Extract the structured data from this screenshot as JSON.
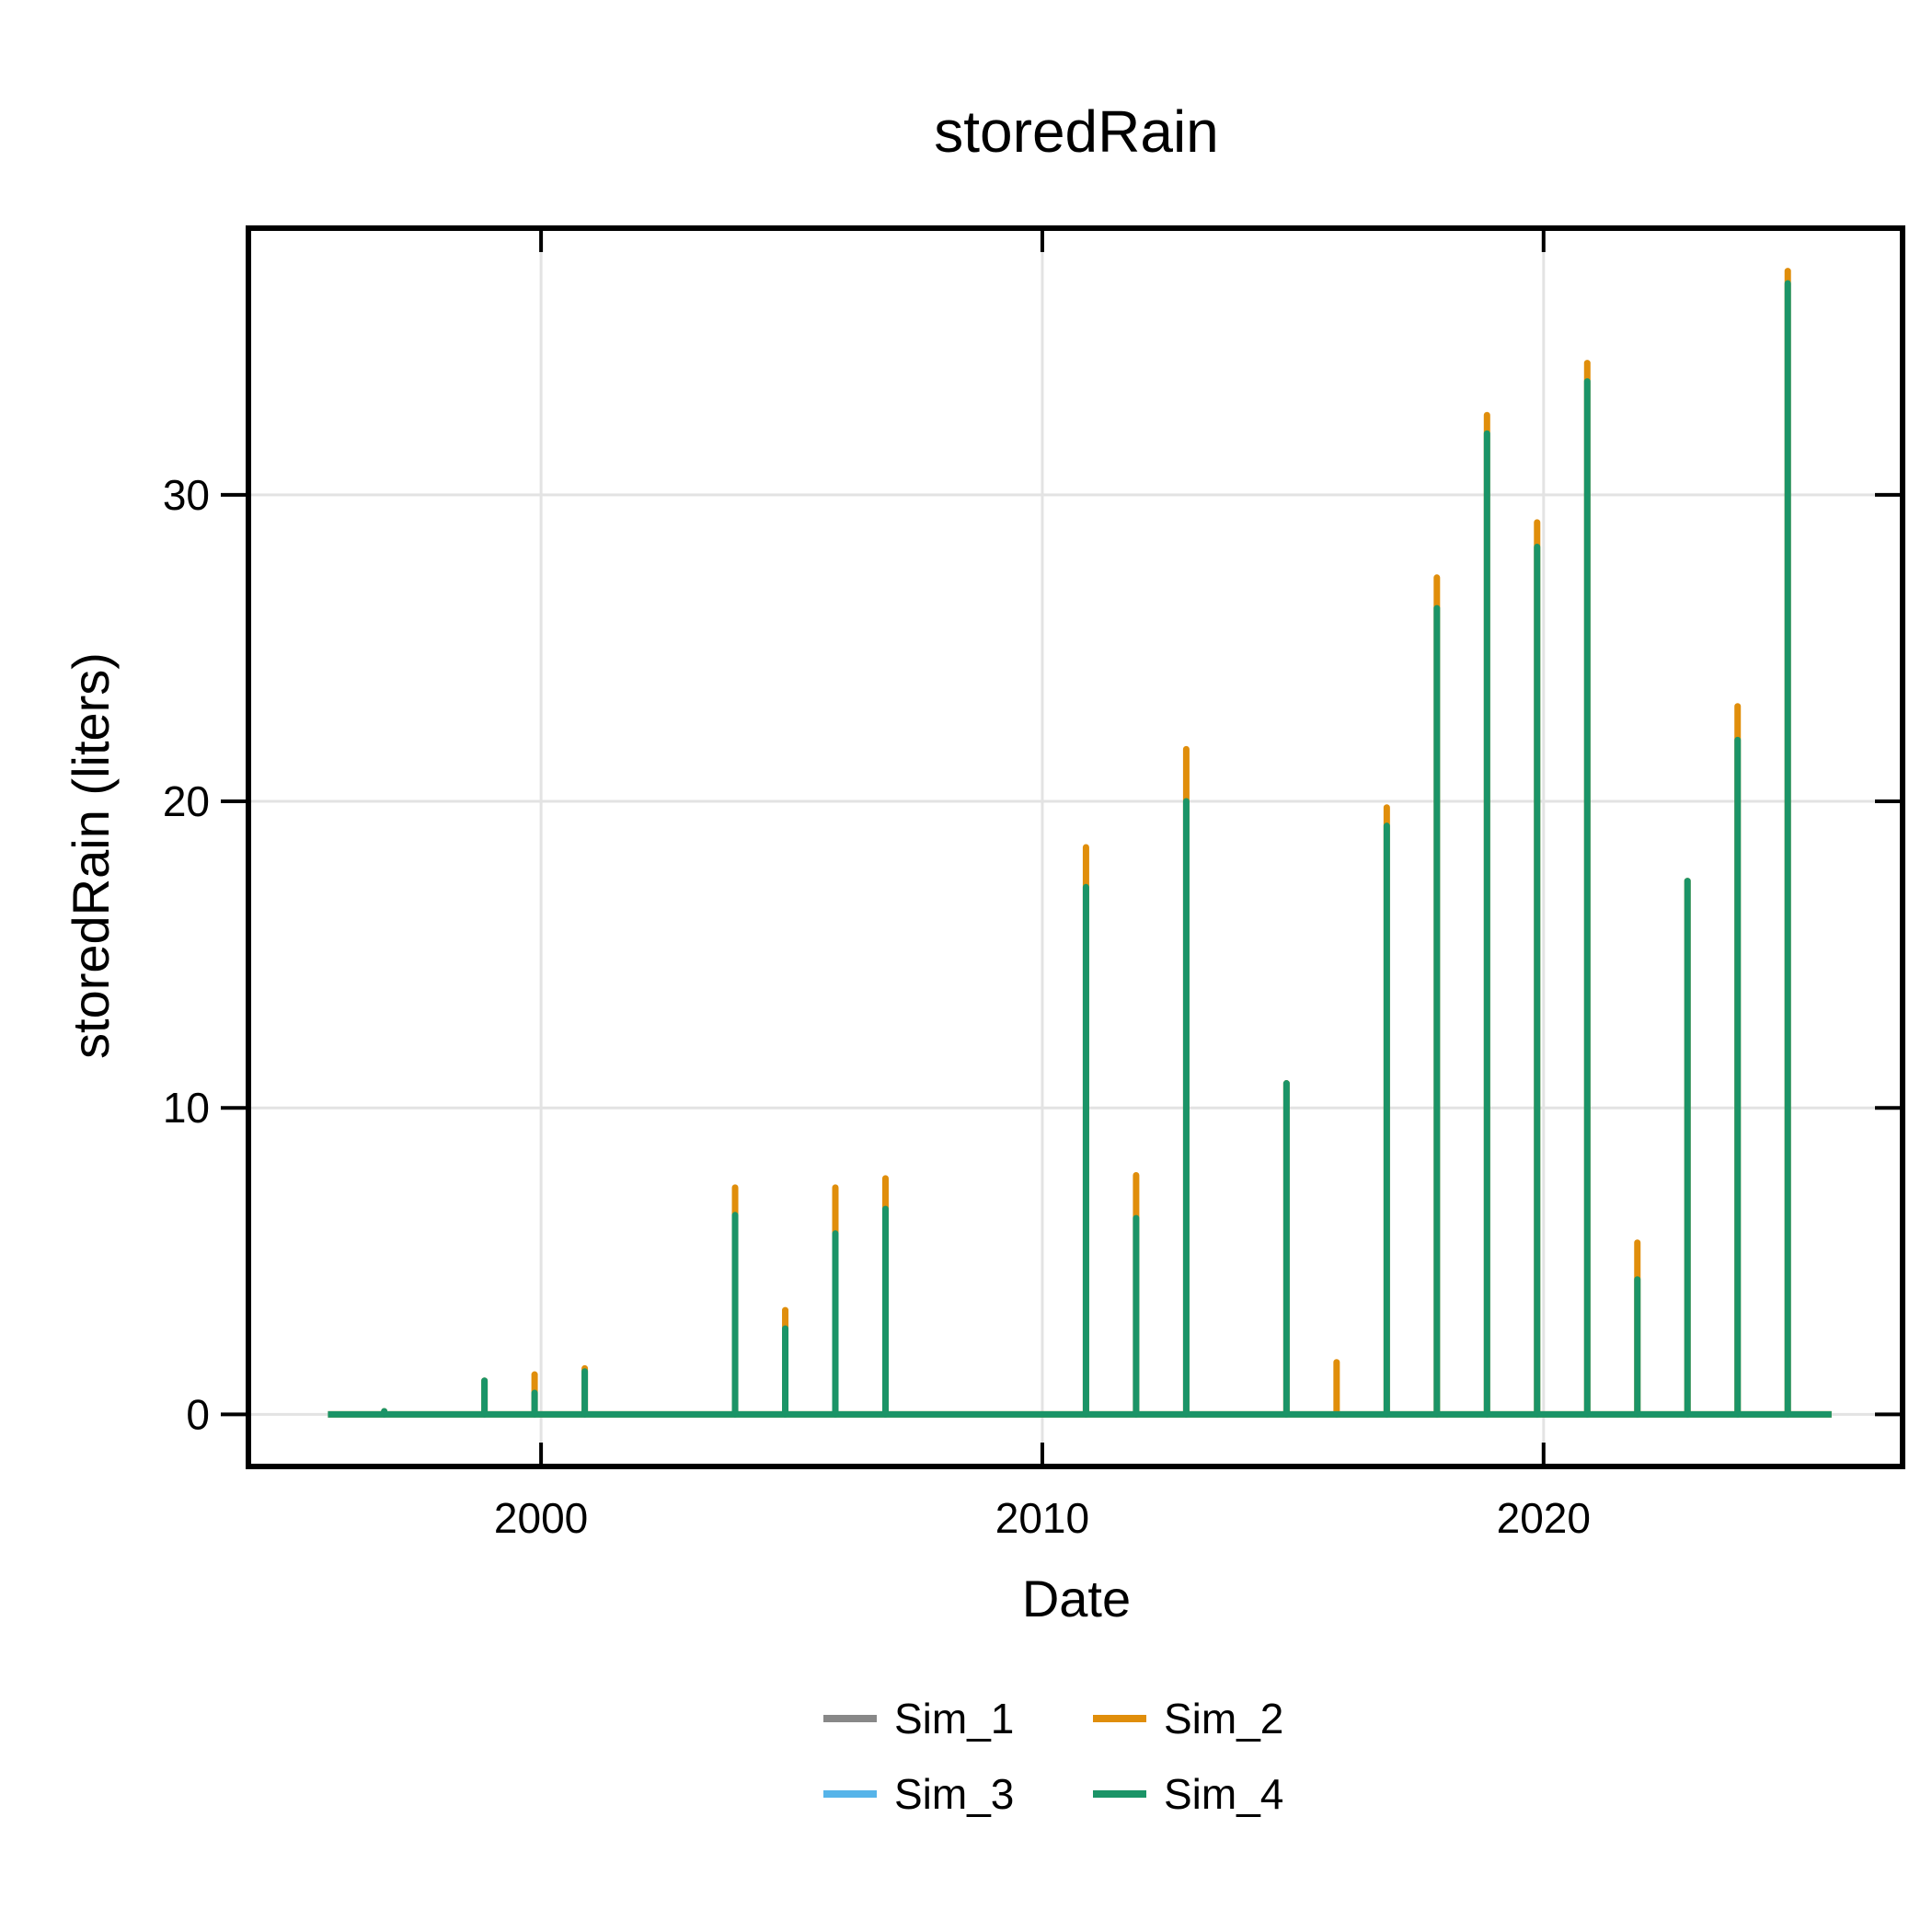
{
  "chart_data": {
    "type": "line",
    "title": "storedRain",
    "xlabel": "Date",
    "ylabel": "storedRain (liters)",
    "xlim": [
      "1994-03-01",
      "2027-03-01"
    ],
    "ylim": [
      -1.7,
      38.7
    ],
    "x_ticks": [
      "2000",
      "2010",
      "2020"
    ],
    "y_ticks": [
      0,
      10,
      20,
      30
    ],
    "grid": true,
    "legend_position": "bottom",
    "colors": {
      "Sim_1": "#888888",
      "Sim_2": "#E08E0B",
      "Sim_3": "#56B4E9",
      "Sim_4": "#1B9467"
    },
    "baseline_range": [
      "1995-10-01",
      "2025-09-30"
    ],
    "series": [
      {
        "name": "Sim_2",
        "peaks": [
          {
            "date": "1996-11-15",
            "value": 0.1
          },
          {
            "date": "1998-11-15",
            "value": 1.1
          },
          {
            "date": "1999-11-15",
            "value": 1.3
          },
          {
            "date": "2000-11-15",
            "value": 1.5
          },
          {
            "date": "2003-11-15",
            "value": 7.4
          },
          {
            "date": "2004-11-15",
            "value": 3.4
          },
          {
            "date": "2005-11-15",
            "value": 7.4
          },
          {
            "date": "2006-11-15",
            "value": 7.7
          },
          {
            "date": "2010-11-15",
            "value": 18.5
          },
          {
            "date": "2011-11-15",
            "value": 7.8
          },
          {
            "date": "2012-11-15",
            "value": 21.7
          },
          {
            "date": "2014-11-15",
            "value": 10.8
          },
          {
            "date": "2015-11-15",
            "value": 1.7
          },
          {
            "date": "2016-11-15",
            "value": 19.8
          },
          {
            "date": "2017-11-15",
            "value": 27.3
          },
          {
            "date": "2018-11-15",
            "value": 32.6
          },
          {
            "date": "2019-11-15",
            "value": 29.1
          },
          {
            "date": "2020-11-15",
            "value": 34.3
          },
          {
            "date": "2021-11-15",
            "value": 5.6
          },
          {
            "date": "2022-11-15",
            "value": 17.4
          },
          {
            "date": "2023-11-15",
            "value": 23.1
          },
          {
            "date": "2024-11-15",
            "value": 37.3
          }
        ]
      },
      {
        "name": "Sim_4",
        "peaks": [
          {
            "date": "1996-11-15",
            "value": 0.1
          },
          {
            "date": "1998-11-15",
            "value": 1.1
          },
          {
            "date": "1999-11-15",
            "value": 0.7
          },
          {
            "date": "2000-11-15",
            "value": 1.4
          },
          {
            "date": "2003-11-15",
            "value": 6.5
          },
          {
            "date": "2004-11-15",
            "value": 2.8
          },
          {
            "date": "2005-11-15",
            "value": 5.9
          },
          {
            "date": "2006-11-15",
            "value": 6.7
          },
          {
            "date": "2010-11-15",
            "value": 17.2
          },
          {
            "date": "2011-11-15",
            "value": 6.4
          },
          {
            "date": "2012-11-15",
            "value": 20.0
          },
          {
            "date": "2014-11-15",
            "value": 10.8
          },
          {
            "date": "2015-11-15",
            "value": 0.0
          },
          {
            "date": "2016-11-15",
            "value": 19.2
          },
          {
            "date": "2017-11-15",
            "value": 26.3
          },
          {
            "date": "2018-11-15",
            "value": 32.0
          },
          {
            "date": "2019-11-15",
            "value": 28.3
          },
          {
            "date": "2020-11-15",
            "value": 33.7
          },
          {
            "date": "2021-11-15",
            "value": 4.4
          },
          {
            "date": "2022-11-15",
            "value": 17.4
          },
          {
            "date": "2023-11-15",
            "value": 22.0
          },
          {
            "date": "2024-11-15",
            "value": 36.9
          }
        ]
      }
    ],
    "legend": [
      {
        "name": "Sim_1",
        "color": "#888888"
      },
      {
        "name": "Sim_2",
        "color": "#E08E0B"
      },
      {
        "name": "Sim_3",
        "color": "#56B4E9"
      },
      {
        "name": "Sim_4",
        "color": "#1B9467"
      }
    ]
  }
}
